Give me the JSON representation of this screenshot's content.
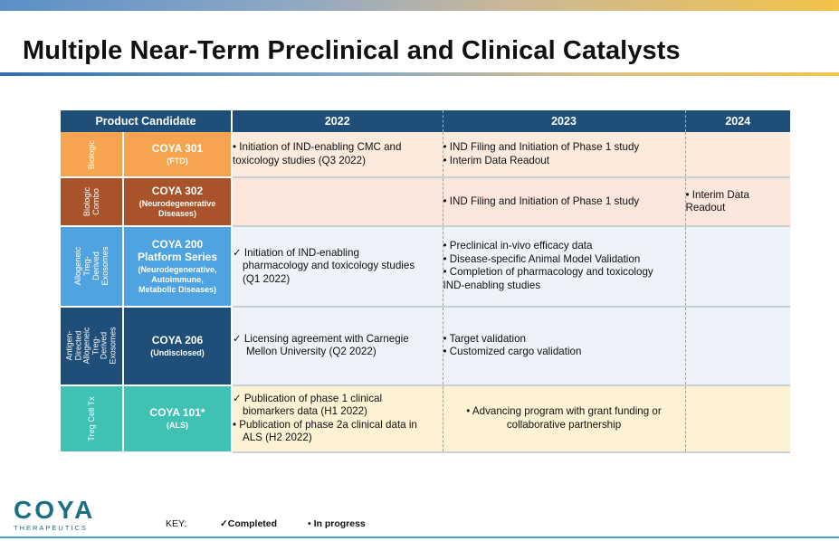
{
  "title": "Multiple Near-Term Preclinical and Clinical Catalysts",
  "table": {
    "headers": [
      "Product Candidate",
      "2022",
      "2023",
      "2024"
    ],
    "rows": [
      {
        "category": "Biologic",
        "name": "COYA 301",
        "sub": "(FTD)",
        "y2022": [
          "• Initiation of IND-enabling CMC and",
          "toxicology studies (Q3 2022)"
        ],
        "y2023": [
          "• IND Filing and Initiation of Phase 1 study",
          "• Interim Data Readout"
        ],
        "y2024": []
      },
      {
        "category": "Biologic\nCombo",
        "name": "COYA 302",
        "sub": "(Neurodegenerative\nDiseases)",
        "y2022": [],
        "y2023": [
          "• IND Filing and Initiation of Phase 1 study"
        ],
        "y2024": [
          "• Interim Data",
          "Readout"
        ]
      },
      {
        "category": "Allogeneic Treg-\nDerived\nExosomes",
        "name": "COYA 200\nPlatform Series",
        "sub": "(Neurodegenerative,\nAutoimmune,\nMetabolic Diseases)",
        "y2022": [
          "✓ Initiation of IND-enabling",
          "pharmacology and toxicology studies",
          "(Q1 2022)"
        ],
        "y2023": [
          "• Preclinical in-vivo efficacy data",
          "• Disease-specific Animal Model Validation",
          "• Completion of pharmacology and toxicology",
          "IND-enabling studies"
        ],
        "y2024": []
      },
      {
        "category": "Antigen-\nDirected\nAllogeneic\nTreg-Derived\nExosomes",
        "name": "COYA 206",
        "sub": "(Undisclosed)",
        "y2022": [
          "✓  Licensing agreement with Carnegie",
          "Mellon University (Q2 2022)"
        ],
        "y2023": [
          "• Target validation",
          "• Customized cargo validation"
        ],
        "y2024": []
      },
      {
        "category": "Treg Cell Tx",
        "name": "COYA 101*",
        "sub": "(ALS)",
        "y2022": [
          "✓ Publication of phase 1 clinical",
          "biomarkers data (H1 2022)",
          "•  Publication of phase 2a clinical data in",
          "ALS (H2 2022)"
        ],
        "y2023": [
          "• Advancing program with grant funding or",
          "collaborative partnership"
        ],
        "y2024": []
      }
    ]
  },
  "logo": {
    "word": "COYA",
    "tagline": "THERAPEUTICS"
  },
  "key": {
    "label": "KEY:",
    "completed": "✓Completed",
    "in_progress": "•  In progress"
  },
  "colors": {
    "header": "#1f4e79",
    "biologic": "#f6a44f",
    "combo": "#a8532a",
    "exosomes": "#4fa3e0",
    "antigen": "#1f4e79",
    "treg": "#3fc1b3"
  },
  "icons": {
    "completed": "check-icon",
    "in_progress": "bullet-icon"
  }
}
